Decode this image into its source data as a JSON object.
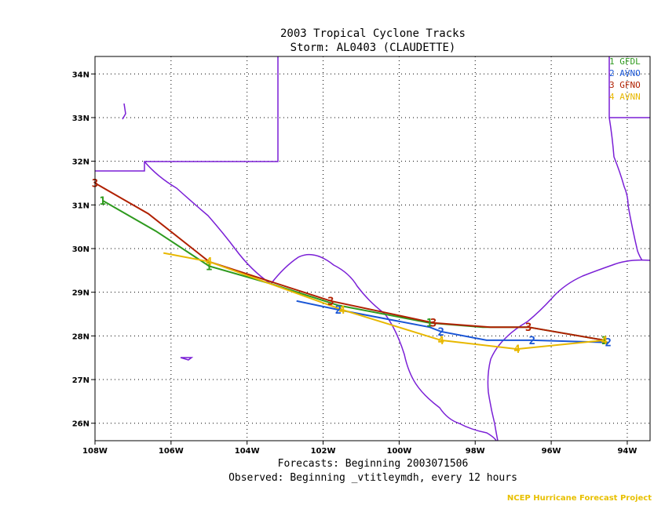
{
  "title_line1": "2003 Tropical Cyclone Tracks",
  "title_line2": "Storm: AL0403 (CLAUDETTE)",
  "footer_line1": "Forecasts: Beginning 2003071506",
  "footer_line2": "Observed: Beginning _vtitleymdh, every 12 hours",
  "credit": "NCEP Hurricane Forecast Project",
  "colors": {
    "border": "#7a1fd6",
    "grid": "#000000",
    "GFDL": "#2e9a1e",
    "AVNO": "#1a56d6",
    "GFNO": "#b02000",
    "AVNN": "#e8b800"
  },
  "chart_data": {
    "type": "line",
    "title": "2003 Tropical Cyclone Tracks",
    "subtitle": "Storm: AL0403 (CLAUDETTE)",
    "xlabel": "",
    "ylabel": "",
    "xlim": [
      -108,
      -93.4
    ],
    "ylim": [
      25.6,
      34.4
    ],
    "grid": true,
    "legend_position": "top-right",
    "x_ticks": [
      {
        "value": -108,
        "label": "108W"
      },
      {
        "value": -106,
        "label": "106W"
      },
      {
        "value": -104,
        "label": "104W"
      },
      {
        "value": -102,
        "label": "102W"
      },
      {
        "value": -100,
        "label": "100W"
      },
      {
        "value": -98,
        "label": "98W"
      },
      {
        "value": -96,
        "label": "96W"
      },
      {
        "value": -94,
        "label": "94W"
      }
    ],
    "y_ticks": [
      {
        "value": 26,
        "label": "26N"
      },
      {
        "value": 27,
        "label": "27N"
      },
      {
        "value": 28,
        "label": "28N"
      },
      {
        "value": 29,
        "label": "29N"
      },
      {
        "value": 30,
        "label": "30N"
      },
      {
        "value": 31,
        "label": "31N"
      },
      {
        "value": 32,
        "label": "32N"
      },
      {
        "value": 33,
        "label": "33N"
      },
      {
        "value": 34,
        "label": "34N"
      }
    ],
    "series": [
      {
        "name": "GFDL",
        "marker": "1",
        "legend": "1 GFDL",
        "line": [
          [
            -94.6,
            27.9
          ],
          [
            -96.6,
            28.2
          ],
          [
            -97.8,
            28.2
          ],
          [
            -99.2,
            28.3
          ],
          [
            -101.6,
            28.7
          ],
          [
            -103.4,
            29.2
          ],
          [
            -105.0,
            29.6
          ],
          [
            -106.4,
            30.4
          ],
          [
            -107.8,
            31.1
          ]
        ],
        "labels": [
          [
            -94.6,
            27.9
          ],
          [
            -99.2,
            28.3
          ],
          [
            -105.0,
            29.6
          ],
          [
            -107.8,
            31.1
          ]
        ]
      },
      {
        "name": "AVNO",
        "marker": "2",
        "legend": "2 AVNO",
        "line": [
          [
            -102.7,
            28.8
          ],
          [
            -101.6,
            28.6
          ],
          [
            -99.2,
            28.2
          ],
          [
            -98.9,
            28.1
          ],
          [
            -97.7,
            27.9
          ],
          [
            -96.5,
            27.9
          ],
          [
            -94.5,
            27.85
          ]
        ],
        "labels": [
          [
            -101.6,
            28.6
          ],
          [
            -98.9,
            28.1
          ],
          [
            -96.5,
            27.9
          ],
          [
            -94.5,
            27.85
          ]
        ]
      },
      {
        "name": "GFNO",
        "marker": "3",
        "legend": "3 GFNO",
        "line": [
          [
            -108.0,
            31.5
          ],
          [
            -106.6,
            30.8
          ],
          [
            -105.0,
            29.7
          ],
          [
            -101.8,
            28.8
          ],
          [
            -99.1,
            28.3
          ],
          [
            -97.6,
            28.2
          ],
          [
            -96.6,
            28.2
          ],
          [
            -94.6,
            27.9
          ]
        ],
        "labels": [
          [
            -108.0,
            31.5
          ],
          [
            -101.8,
            28.8
          ],
          [
            -99.1,
            28.3
          ],
          [
            -96.6,
            28.2
          ]
        ]
      },
      {
        "name": "AVNN",
        "marker": "4",
        "legend": "4 AVNN",
        "line": [
          [
            -106.2,
            29.9
          ],
          [
            -105.0,
            29.7
          ],
          [
            -101.5,
            28.6
          ],
          [
            -98.9,
            27.9
          ],
          [
            -96.9,
            27.7
          ],
          [
            -94.6,
            27.9
          ]
        ],
        "labels": [
          [
            -105.0,
            29.7
          ],
          [
            -101.5,
            28.6
          ],
          [
            -98.9,
            27.9
          ],
          [
            -96.9,
            27.7
          ],
          [
            -94.6,
            27.9
          ]
        ]
      }
    ]
  }
}
